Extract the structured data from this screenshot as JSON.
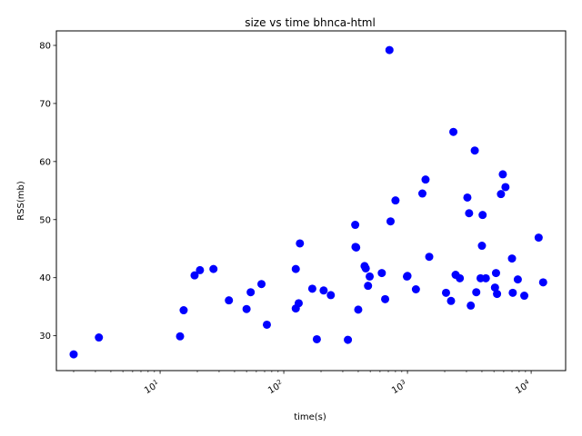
{
  "chart_data": {
    "type": "scatter",
    "title": "size vs time bhnca-html",
    "xlabel": "time(s)",
    "ylabel": "RSS(mb)",
    "xscale": "log",
    "xlim": [
      1.45,
      19000
    ],
    "ylim": [
      24,
      82.5
    ],
    "grid": false,
    "marker_color": "#0000ff",
    "x_ticks": [
      {
        "value": 10,
        "base": "10",
        "exp": "1"
      },
      {
        "value": 100,
        "base": "10",
        "exp": "2"
      },
      {
        "value": 1000,
        "base": "10",
        "exp": "3"
      },
      {
        "value": 10000,
        "base": "10",
        "exp": "4"
      }
    ],
    "y_ticks": [
      30,
      40,
      50,
      60,
      70,
      80
    ],
    "points": [
      {
        "x": 2.0,
        "y": 26.8
      },
      {
        "x": 3.2,
        "y": 29.7
      },
      {
        "x": 14.5,
        "y": 29.9
      },
      {
        "x": 15.5,
        "y": 34.4
      },
      {
        "x": 19.0,
        "y": 40.4
      },
      {
        "x": 21.0,
        "y": 41.3
      },
      {
        "x": 27.0,
        "y": 41.5
      },
      {
        "x": 36.0,
        "y": 36.1
      },
      {
        "x": 50.0,
        "y": 34.6
      },
      {
        "x": 54.0,
        "y": 37.5
      },
      {
        "x": 66.0,
        "y": 38.9
      },
      {
        "x": 73.0,
        "y": 31.9
      },
      {
        "x": 125.0,
        "y": 41.5
      },
      {
        "x": 125.0,
        "y": 34.7
      },
      {
        "x": 132.0,
        "y": 35.6
      },
      {
        "x": 135.0,
        "y": 45.9
      },
      {
        "x": 170.0,
        "y": 38.1
      },
      {
        "x": 185.0,
        "y": 29.4
      },
      {
        "x": 210.0,
        "y": 37.8
      },
      {
        "x": 240.0,
        "y": 37.0
      },
      {
        "x": 330.0,
        "y": 29.3
      },
      {
        "x": 378.0,
        "y": 49.1
      },
      {
        "x": 380.0,
        "y": 45.3
      },
      {
        "x": 385.0,
        "y": 45.2
      },
      {
        "x": 400.0,
        "y": 34.5
      },
      {
        "x": 450.0,
        "y": 42.0
      },
      {
        "x": 460.0,
        "y": 41.6
      },
      {
        "x": 480.0,
        "y": 38.6
      },
      {
        "x": 495.0,
        "y": 40.2
      },
      {
        "x": 620.0,
        "y": 40.8
      },
      {
        "x": 660.0,
        "y": 36.3
      },
      {
        "x": 715.0,
        "y": 79.2
      },
      {
        "x": 730.0,
        "y": 49.7
      },
      {
        "x": 800.0,
        "y": 53.3
      },
      {
        "x": 990.0,
        "y": 40.2
      },
      {
        "x": 1000.0,
        "y": 40.3
      },
      {
        "x": 1170.0,
        "y": 38.0
      },
      {
        "x": 1320.0,
        "y": 54.5
      },
      {
        "x": 1400.0,
        "y": 56.9
      },
      {
        "x": 1500.0,
        "y": 43.6
      },
      {
        "x": 2050.0,
        "y": 37.4
      },
      {
        "x": 2250.0,
        "y": 36.0
      },
      {
        "x": 2350.0,
        "y": 65.1
      },
      {
        "x": 2450.0,
        "y": 40.5
      },
      {
        "x": 2650.0,
        "y": 39.9
      },
      {
        "x": 3050.0,
        "y": 53.8
      },
      {
        "x": 3150.0,
        "y": 51.1
      },
      {
        "x": 3250.0,
        "y": 35.2
      },
      {
        "x": 3500.0,
        "y": 61.9
      },
      {
        "x": 3600.0,
        "y": 37.5
      },
      {
        "x": 3900.0,
        "y": 39.9
      },
      {
        "x": 4000.0,
        "y": 45.5
      },
      {
        "x": 4050.0,
        "y": 50.8
      },
      {
        "x": 4300.0,
        "y": 39.9
      },
      {
        "x": 5100.0,
        "y": 38.3
      },
      {
        "x": 5200.0,
        "y": 40.8
      },
      {
        "x": 5300.0,
        "y": 37.2
      },
      {
        "x": 5700.0,
        "y": 54.4
      },
      {
        "x": 5900.0,
        "y": 57.8
      },
      {
        "x": 6200.0,
        "y": 55.6
      },
      {
        "x": 7000.0,
        "y": 43.3
      },
      {
        "x": 7100.0,
        "y": 37.4
      },
      {
        "x": 7800.0,
        "y": 39.7
      },
      {
        "x": 8800.0,
        "y": 36.9
      },
      {
        "x": 11500.0,
        "y": 46.9
      },
      {
        "x": 12500.0,
        "y": 39.2
      }
    ]
  }
}
